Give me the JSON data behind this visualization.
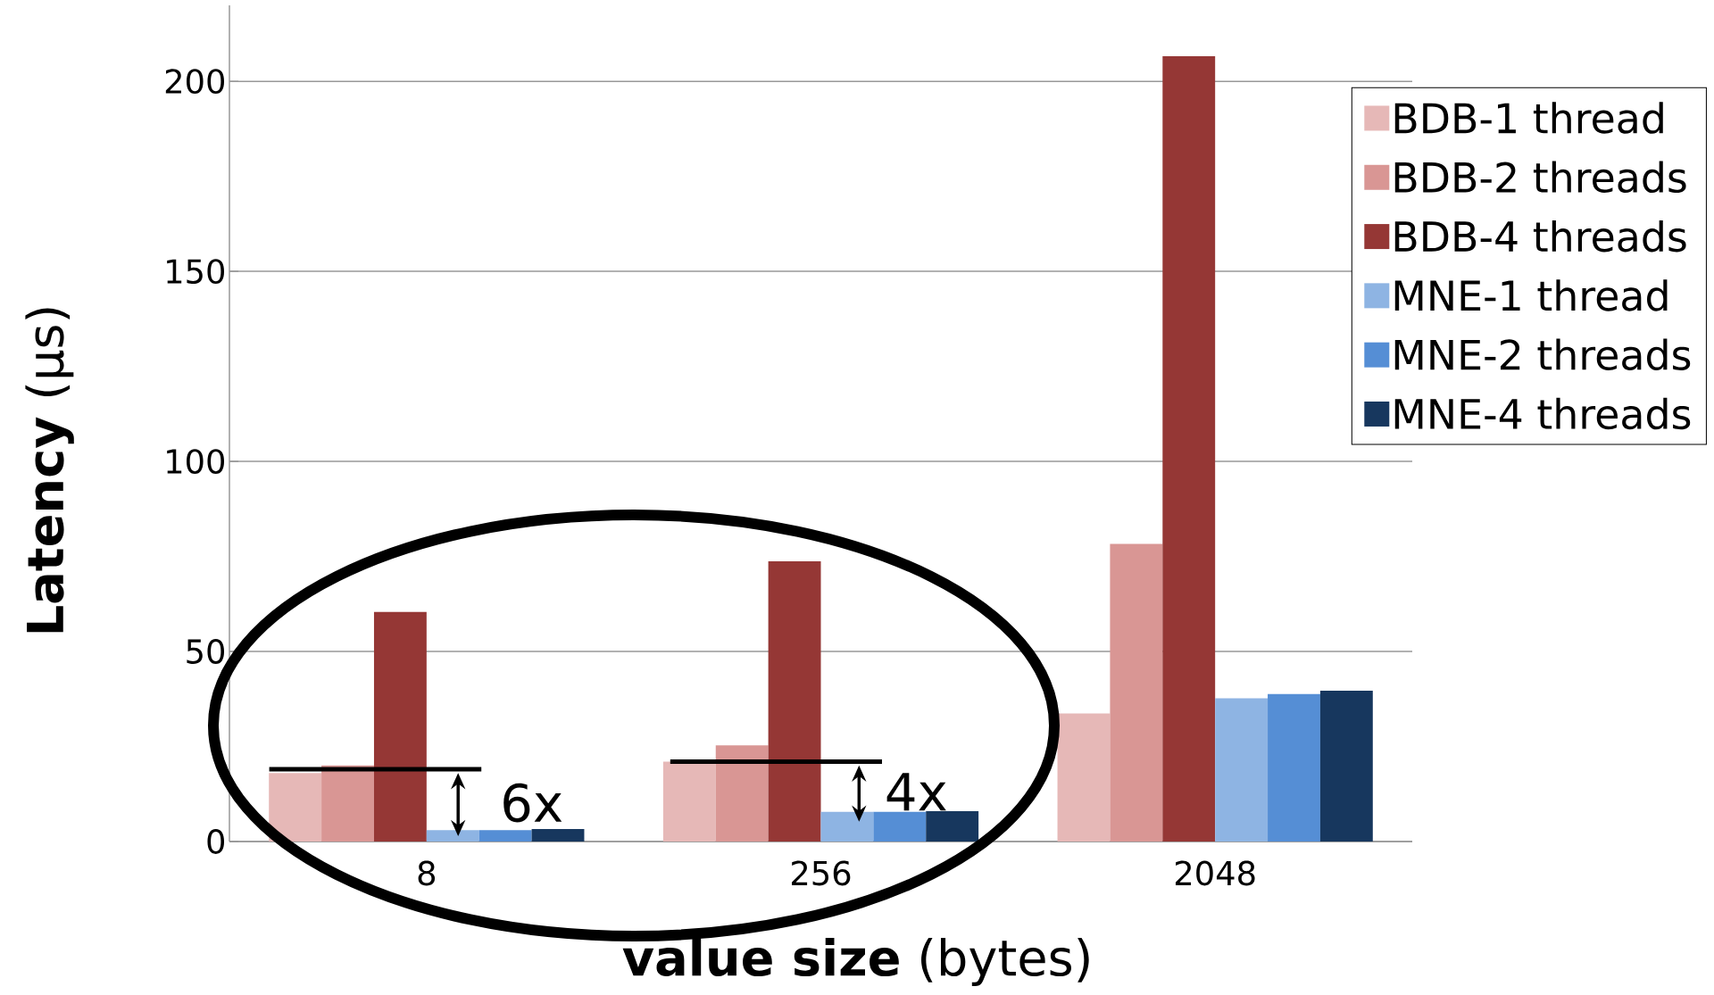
{
  "chart_data": {
    "type": "bar",
    "xlabel": "**value size** (bytes)",
    "ylabel": "**Latency** (µs)",
    "categories": [
      "8",
      "256",
      "2048"
    ],
    "series": [
      {
        "name": "BDB-1 thread",
        "color": "#e6b8b7",
        "values": [
          18,
          21,
          33.7
        ]
      },
      {
        "name": "BDB-2 threads",
        "color": "#d99694",
        "values": [
          20,
          25.3,
          78.3
        ]
      },
      {
        "name": "BDB-4 threads",
        "color": "#953735",
        "values": [
          60.4,
          73.7,
          206.6
        ]
      },
      {
        "name": "MNE-1 thread",
        "color": "#8eb4e3",
        "values": [
          3,
          7.8,
          37.7
        ]
      },
      {
        "name": "MNE-2 threads",
        "color": "#558ed5",
        "values": [
          3,
          7.8,
          38.8
        ]
      },
      {
        "name": "MNE-4 threads",
        "color": "#17375e",
        "values": [
          3.3,
          8,
          39.7
        ]
      }
    ],
    "ylim": [
      0,
      220
    ],
    "yticks": [
      0,
      50,
      100,
      150,
      200
    ],
    "grid": "y",
    "legend": "top right",
    "annotations": [
      {
        "text": "6x",
        "x": "8",
        "y": 19
      },
      {
        "text": "4x",
        "x": "256",
        "y": 21
      }
    ]
  }
}
